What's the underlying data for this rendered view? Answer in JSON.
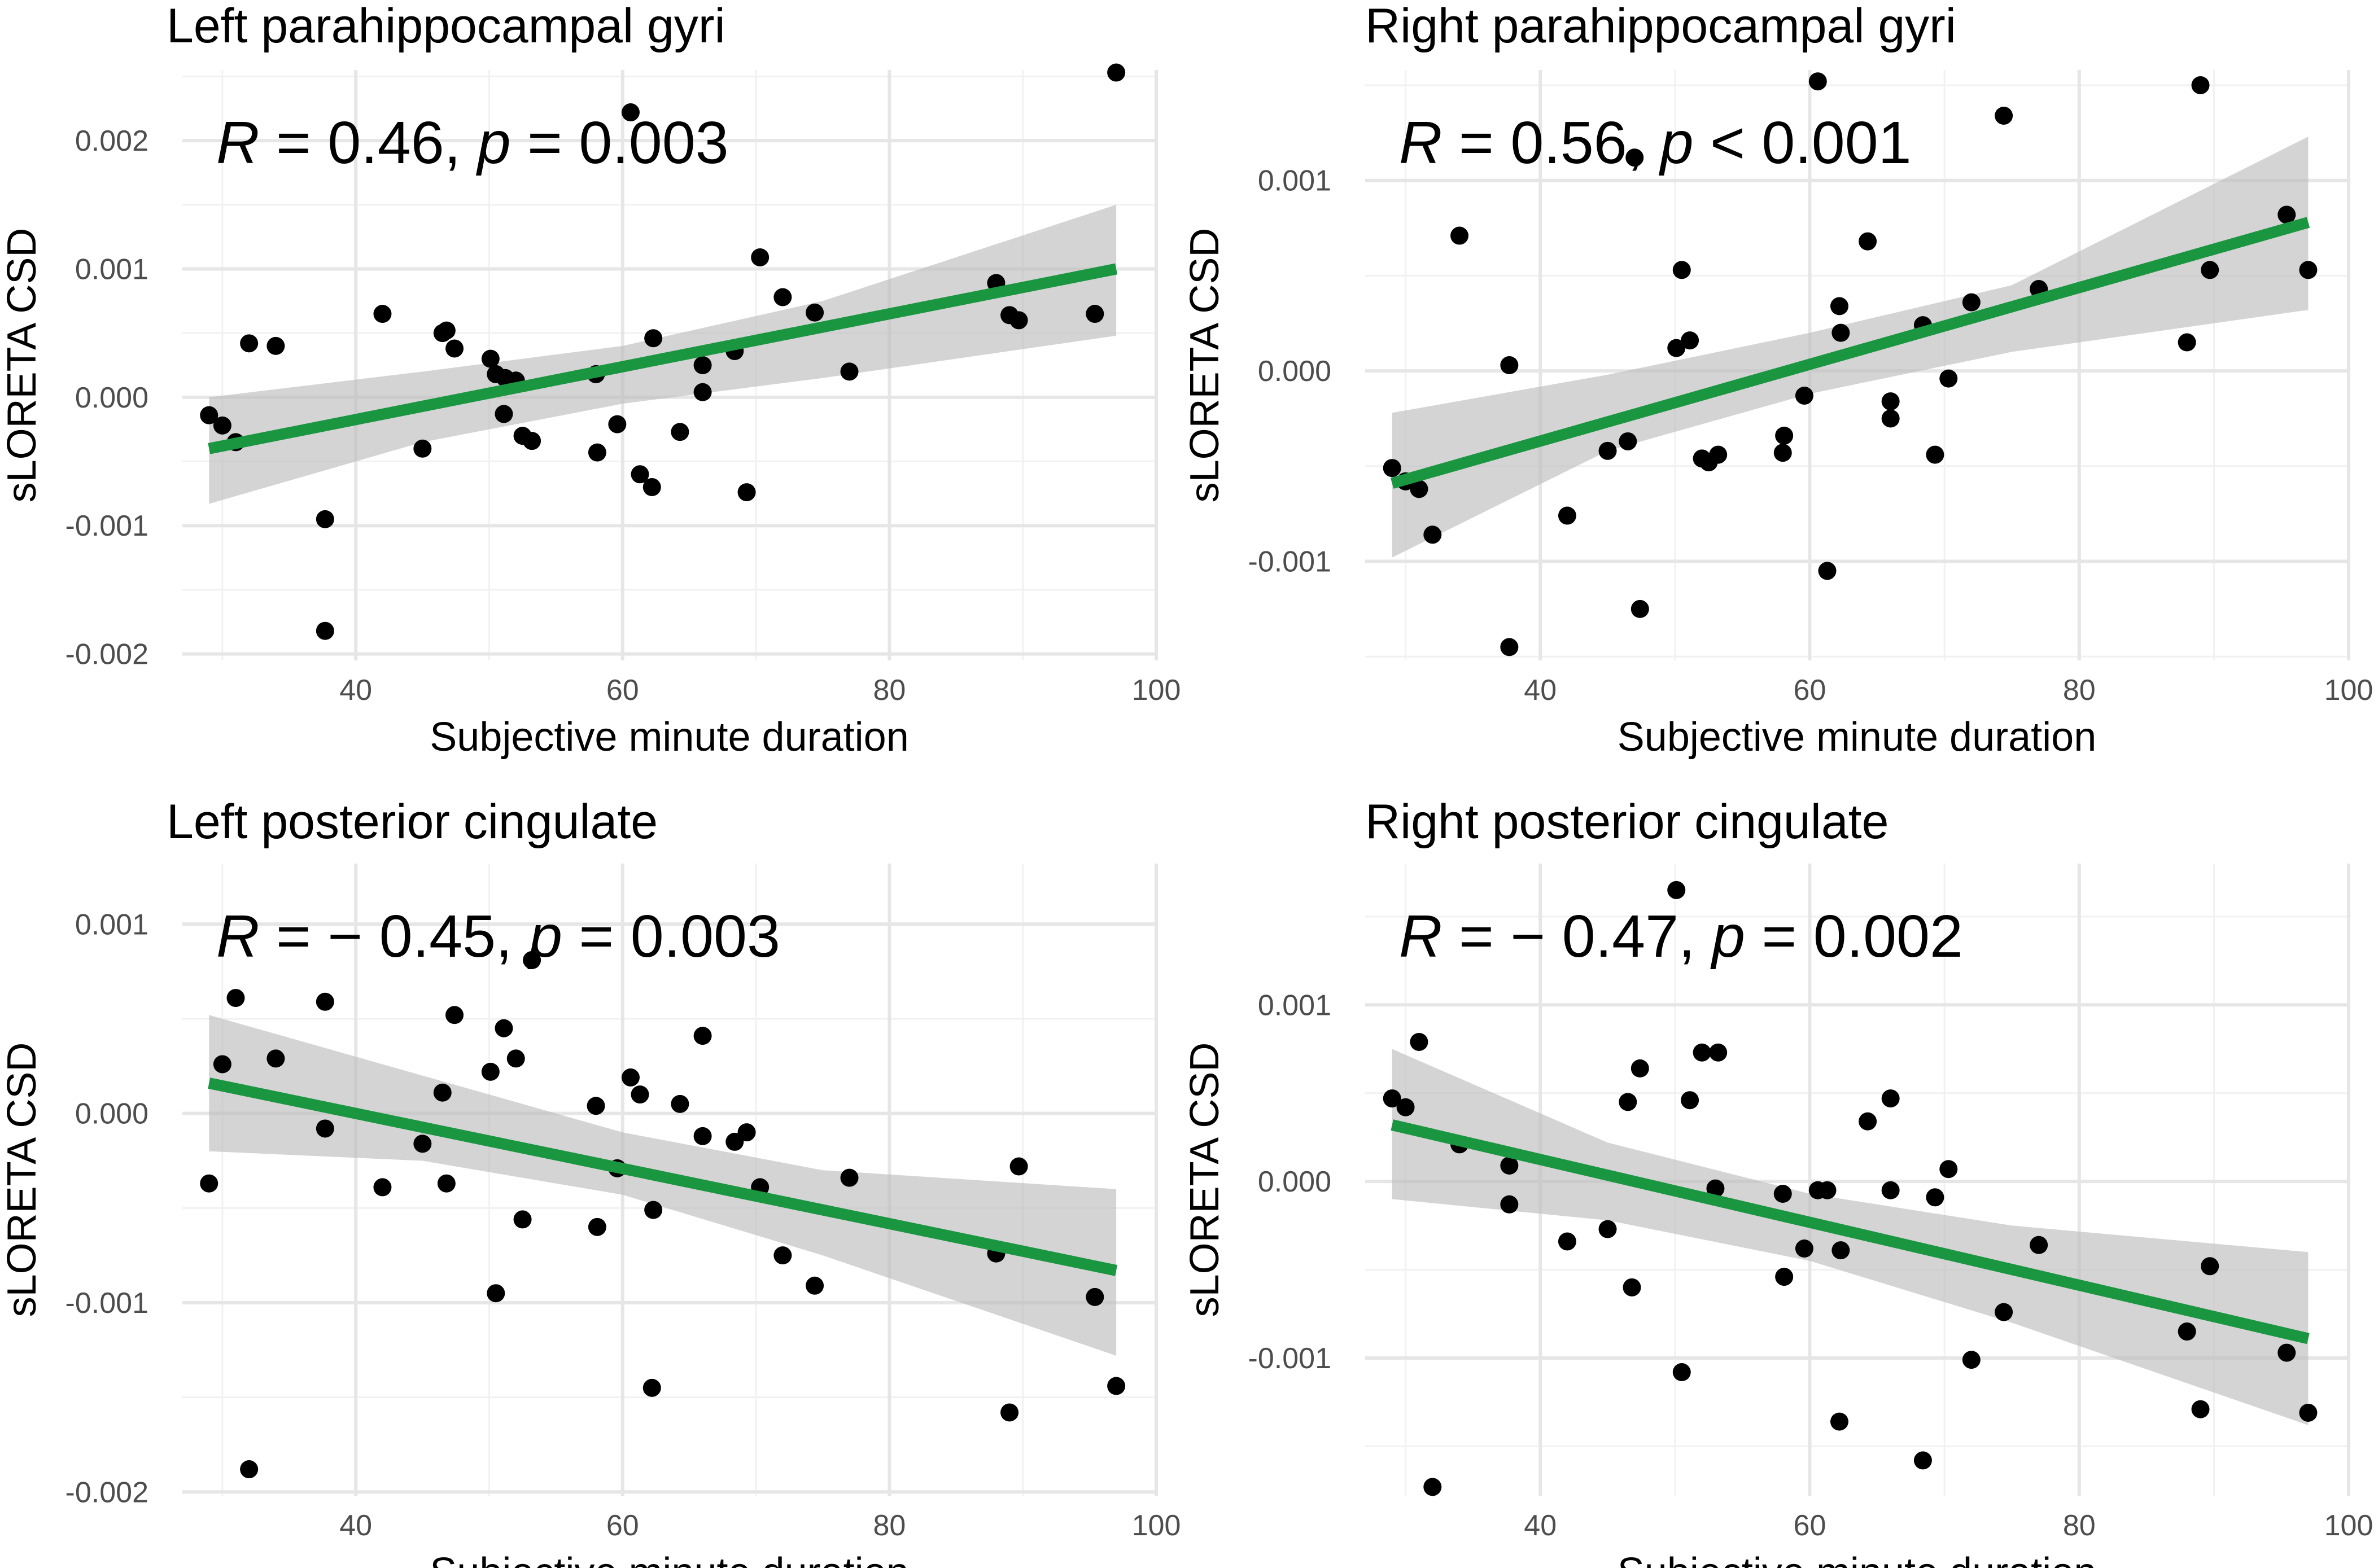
{
  "colors": {
    "fit_line": "#1a9641",
    "band": "#bdbdbd",
    "points": "#000000",
    "grid": "#e6e6e6"
  },
  "chart_data": [
    {
      "type": "scatter",
      "title": "Left parahippocampal gyri",
      "stat": {
        "r_label": "R",
        "r_text": " = 0.46, ",
        "p_label": "p",
        "p_text": " = 0.003"
      },
      "xlabel": "Subjective minute duration",
      "ylabel": "sLORETA CSD",
      "xlim": [
        27,
        100
      ],
      "ylim": [
        -0.00205,
        0.00255
      ],
      "xticks": [
        40,
        60,
        80,
        100
      ],
      "xtick_labels": [
        "40",
        "60",
        "80",
        "100"
      ],
      "yticks": [
        -0.002,
        -0.001,
        0.0,
        0.001,
        0.002
      ],
      "ytick_labels": [
        "-0.002",
        "-0.001",
        "0.000",
        "0.001",
        "0.002"
      ],
      "fit": {
        "x": [
          29,
          97
        ],
        "y": [
          -0.0004,
          0.001
        ]
      },
      "band": {
        "x": [
          29,
          45,
          60,
          75,
          97
        ],
        "upper": [
          0.0,
          0.0002,
          0.0004,
          0.00075,
          0.0015
        ],
        "lower": [
          -0.00083,
          -0.00035,
          -5e-05,
          0.00015,
          0.00048
        ]
      },
      "points": [
        [
          29,
          -0.00014
        ],
        [
          30,
          -0.00022
        ],
        [
          31,
          -0.00035
        ],
        [
          32,
          0.00042
        ],
        [
          34,
          0.0004
        ],
        [
          37.7,
          -0.00095
        ],
        [
          37.7,
          -0.00182
        ],
        [
          42,
          0.00065
        ],
        [
          45,
          -0.0004
        ],
        [
          46.5,
          0.0005
        ],
        [
          46.8,
          0.00052
        ],
        [
          47.4,
          0.00038
        ],
        [
          50.1,
          0.0003
        ],
        [
          50.5,
          0.00018
        ],
        [
          51.1,
          -0.00013
        ],
        [
          51.2,
          0.00015
        ],
        [
          52,
          0.00013
        ],
        [
          52.5,
          -0.0003
        ],
        [
          53.2,
          -0.00034
        ],
        [
          58,
          0.00018
        ],
        [
          58.1,
          -0.00043
        ],
        [
          59.6,
          -0.00021
        ],
        [
          60.6,
          0.00222
        ],
        [
          61.3,
          -0.0006
        ],
        [
          62.2,
          -0.0007
        ],
        [
          62.3,
          0.00046
        ],
        [
          64.3,
          -0.00027
        ],
        [
          66,
          0.00025
        ],
        [
          66,
          4e-05
        ],
        [
          68.4,
          0.00036
        ],
        [
          69.3,
          -0.00074
        ],
        [
          70.3,
          0.00109
        ],
        [
          72,
          0.00078
        ],
        [
          74.4,
          0.00066
        ],
        [
          77,
          0.0002
        ],
        [
          88,
          0.00089
        ],
        [
          89,
          0.00064
        ],
        [
          89.7,
          0.0006
        ],
        [
          95.4,
          0.00065
        ],
        [
          97,
          0.00253
        ]
      ]
    },
    {
      "type": "scatter",
      "title": "Right parahippocampal gyri",
      "stat": {
        "r_label": "R",
        "r_text": " = 0.56, ",
        "p_label": "p",
        "p_text": " < 0.001"
      },
      "xlabel": "Subjective minute duration",
      "ylabel": "sLORETA CSD",
      "xlim": [
        27,
        100
      ],
      "ylim": [
        -0.00152,
        0.00158
      ],
      "xticks": [
        40,
        60,
        80,
        100
      ],
      "xtick_labels": [
        "40",
        "60",
        "80",
        "100"
      ],
      "yticks": [
        -0.001,
        0.0,
        0.001
      ],
      "ytick_labels": [
        "-0.001",
        "0.000",
        "0.001"
      ],
      "fit": {
        "x": [
          29,
          97
        ],
        "y": [
          -0.00059,
          0.00078
        ]
      },
      "band": {
        "x": [
          29,
          45,
          60,
          75,
          97
        ],
        "upper": [
          -0.00022,
          -2e-05,
          0.0002,
          0.00045,
          0.00123
        ],
        "lower": [
          -0.00098,
          -0.00042,
          -0.00012,
          0.0001,
          0.00032
        ]
      },
      "points": [
        [
          29,
          -0.00051
        ],
        [
          30,
          -0.00058
        ],
        [
          31,
          -0.00062
        ],
        [
          32,
          -0.00086
        ],
        [
          34,
          0.00071
        ],
        [
          37.7,
          3e-05
        ],
        [
          37.7,
          -0.00145
        ],
        [
          42,
          -0.00076
        ],
        [
          45,
          -0.00042
        ],
        [
          46.5,
          -0.00037
        ],
        [
          47,
          0.00112
        ],
        [
          47.4,
          -0.00125
        ],
        [
          50.1,
          0.00012
        ],
        [
          50.5,
          0.00053
        ],
        [
          51.1,
          0.00016
        ],
        [
          52,
          -0.00046
        ],
        [
          52.5,
          -0.00048
        ],
        [
          53.2,
          -0.00044
        ],
        [
          58,
          -0.00043
        ],
        [
          58.1,
          -0.00034
        ],
        [
          59.6,
          -0.00013
        ],
        [
          60.6,
          0.00152
        ],
        [
          61.3,
          -0.00105
        ],
        [
          62.2,
          0.00034
        ],
        [
          62.3,
          0.0002
        ],
        [
          64.3,
          0.00068
        ],
        [
          66,
          -0.00016
        ],
        [
          66,
          -0.00025
        ],
        [
          68.4,
          0.00024
        ],
        [
          69.3,
          -0.00044
        ],
        [
          70.3,
          -4e-05
        ],
        [
          72,
          0.00036
        ],
        [
          74.4,
          0.00134
        ],
        [
          77,
          0.00043
        ],
        [
          88,
          0.00015
        ],
        [
          89,
          0.0015
        ],
        [
          89.7,
          0.00053
        ],
        [
          95.4,
          0.00082
        ],
        [
          97,
          0.00053
        ]
      ]
    },
    {
      "type": "scatter",
      "title": "Left posterior cingulate",
      "stat": {
        "r_label": "R",
        "r_text": " = − 0.45, ",
        "p_label": "p",
        "p_text": " = 0.003"
      },
      "xlabel": "Subjective minute duration",
      "ylabel": "sLORETA CSD",
      "xlim": [
        27,
        100
      ],
      "ylim": [
        -0.00202,
        0.00132
      ],
      "xticks": [
        40,
        60,
        80,
        100
      ],
      "xtick_labels": [
        "40",
        "60",
        "80",
        "100"
      ],
      "yticks": [
        -0.002,
        -0.001,
        0.0,
        0.001
      ],
      "ytick_labels": [
        "-0.002",
        "-0.001",
        "0.000",
        "0.001"
      ],
      "fit": {
        "x": [
          29,
          97
        ],
        "y": [
          0.00016,
          -0.00083
        ]
      },
      "band": {
        "x": [
          29,
          45,
          60,
          75,
          97
        ],
        "upper": [
          0.00052,
          0.0002,
          -0.0001,
          -0.0003,
          -0.0004
        ],
        "lower": [
          -0.0002,
          -0.00025,
          -0.00043,
          -0.00075,
          -0.00128
        ]
      },
      "points": [
        [
          29,
          -0.00037
        ],
        [
          30,
          0.00026
        ],
        [
          31,
          0.00061
        ],
        [
          32,
          -0.00188
        ],
        [
          34,
          0.00029
        ],
        [
          37.7,
          -8e-05
        ],
        [
          37.7,
          0.00059
        ],
        [
          42,
          -0.00039
        ],
        [
          45,
          -0.00016
        ],
        [
          46.5,
          0.00011
        ],
        [
          46.8,
          -0.00037
        ],
        [
          47.4,
          0.00052
        ],
        [
          50.1,
          0.00022
        ],
        [
          50.5,
          -0.00095
        ],
        [
          51.1,
          0.00045
        ],
        [
          52,
          0.00029
        ],
        [
          52.5,
          -0.00056
        ],
        [
          53.2,
          0.00081
        ],
        [
          58,
          4e-05
        ],
        [
          58.1,
          -0.0006
        ],
        [
          59.6,
          -0.00029
        ],
        [
          60.6,
          0.00019
        ],
        [
          61.3,
          0.0001
        ],
        [
          62.2,
          -0.00145
        ],
        [
          62.3,
          -0.00051
        ],
        [
          64.3,
          5e-05
        ],
        [
          66,
          0.00041
        ],
        [
          66,
          -0.00012
        ],
        [
          68.4,
          -0.00015
        ],
        [
          69.3,
          -0.0001
        ],
        [
          70.3,
          -0.00039
        ],
        [
          72,
          -0.00075
        ],
        [
          74.4,
          -0.00091
        ],
        [
          77,
          -0.00034
        ],
        [
          88,
          -0.00074
        ],
        [
          89,
          -0.00158
        ],
        [
          89.7,
          -0.00028
        ],
        [
          95.4,
          -0.00097
        ],
        [
          97,
          -0.00144
        ]
      ]
    },
    {
      "type": "scatter",
      "title": "Right posterior cingulate",
      "stat": {
        "r_label": "R",
        "r_text": " = − 0.47, ",
        "p_label": "p",
        "p_text": " = 0.002"
      },
      "xlabel": "Subjective minute duration",
      "ylabel": "sLORETA CSD",
      "xlim": [
        27,
        100
      ],
      "ylim": [
        -0.00178,
        0.0018
      ],
      "xticks": [
        40,
        60,
        80,
        100
      ],
      "xtick_labels": [
        "40",
        "60",
        "80",
        "100"
      ],
      "yticks": [
        -0.001,
        0.0,
        0.001
      ],
      "ytick_labels": [
        "-0.001",
        "0.000",
        "0.001"
      ],
      "fit": {
        "x": [
          29,
          97
        ],
        "y": [
          0.00032,
          -0.00089
        ]
      },
      "band": {
        "x": [
          29,
          45,
          60,
          75,
          97
        ],
        "upper": [
          0.00075,
          0.00022,
          -7e-05,
          -0.00025,
          -0.0004
        ],
        "lower": [
          -0.0001,
          -0.00022,
          -0.00045,
          -0.0008,
          -0.00138
        ]
      },
      "points": [
        [
          29,
          0.00047
        ],
        [
          30,
          0.00042
        ],
        [
          31,
          0.00079
        ],
        [
          32,
          -0.00173
        ],
        [
          34,
          0.00021
        ],
        [
          37.7,
          9e-05
        ],
        [
          37.7,
          -0.00013
        ],
        [
          42,
          -0.00034
        ],
        [
          45,
          -0.00027
        ],
        [
          46.5,
          0.00045
        ],
        [
          46.8,
          -0.0006
        ],
        [
          47.4,
          0.00064
        ],
        [
          50.1,
          0.00165
        ],
        [
          50.5,
          -0.00108
        ],
        [
          51.1,
          0.00046
        ],
        [
          52,
          0.00073
        ],
        [
          53.2,
          0.00073
        ],
        [
          53,
          -4e-05
        ],
        [
          58,
          -7e-05
        ],
        [
          58.1,
          -0.00054
        ],
        [
          59.6,
          -0.00038
        ],
        [
          60.6,
          -5e-05
        ],
        [
          61.3,
          -5e-05
        ],
        [
          62.2,
          -0.00136
        ],
        [
          62.3,
          -0.00039
        ],
        [
          64.3,
          0.00034
        ],
        [
          66,
          0.00047
        ],
        [
          66,
          -5e-05
        ],
        [
          68.4,
          -0.00158
        ],
        [
          69.3,
          -9e-05
        ],
        [
          70.3,
          7e-05
        ],
        [
          72,
          -0.00101
        ],
        [
          74.4,
          -0.00074
        ],
        [
          77,
          -0.00036
        ],
        [
          88,
          -0.00085
        ],
        [
          89,
          -0.00129
        ],
        [
          89.7,
          -0.00048
        ],
        [
          95.4,
          -0.00097
        ],
        [
          97,
          -0.00131
        ]
      ]
    }
  ]
}
